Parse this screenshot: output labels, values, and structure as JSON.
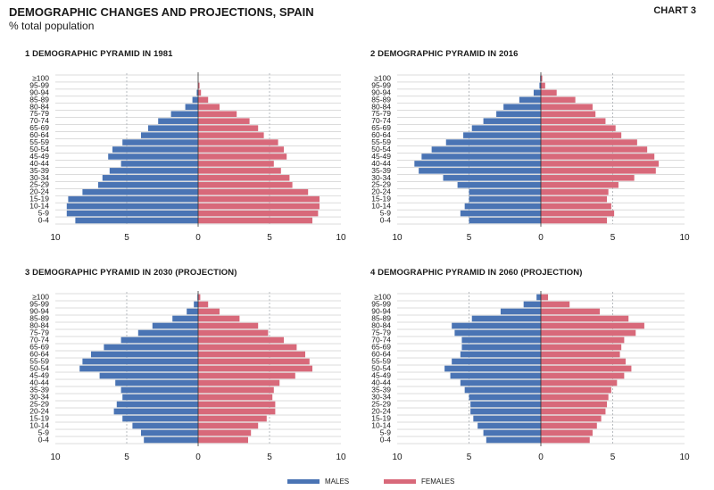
{
  "header": {
    "title": "DEMOGRAPHIC CHANGES AND PROJECTIONS, SPAIN",
    "subtitle": "% total population",
    "chart_label": "CHART 3"
  },
  "colors": {
    "males": "#4a74b4",
    "females": "#d8697a"
  },
  "legend": {
    "males": "MALES",
    "females": "FEMALES"
  },
  "chart_data": [
    {
      "type": "bar",
      "title": "1  DEMOGRAPHIC PYRAMID IN 1981",
      "categories": [
        "≥100",
        "95-99",
        "90-94",
        "85-89",
        "80-84",
        "75-79",
        "70-74",
        "65-69",
        "60-64",
        "55-59",
        "50-54",
        "45-49",
        "40-44",
        "35-39",
        "30-34",
        "25-29",
        "20-24",
        "15-19",
        "10-14",
        "5-9",
        "0-4"
      ],
      "x_ticks": [
        "10",
        "5",
        "0",
        "5",
        "10"
      ],
      "xlim": [
        -10,
        10
      ],
      "series": [
        {
          "name": "MALES",
          "values": [
            0,
            0,
            0.1,
            0.4,
            0.9,
            1.9,
            2.8,
            3.5,
            4.0,
            5.3,
            6.0,
            6.3,
            5.4,
            6.2,
            6.7,
            7.0,
            8.1,
            9.1,
            9.2,
            9.2,
            8.6
          ]
        },
        {
          "name": "FEMALES",
          "values": [
            0,
            0.1,
            0.2,
            0.7,
            1.5,
            2.7,
            3.6,
            4.2,
            4.6,
            5.6,
            6.0,
            6.2,
            5.3,
            5.8,
            6.4,
            6.6,
            7.7,
            8.5,
            8.5,
            8.4,
            8.0
          ]
        }
      ]
    },
    {
      "type": "bar",
      "title": "2  DEMOGRAPHIC PYRAMID IN 2016",
      "categories": [
        "≥100",
        "95-99",
        "90-94",
        "85-89",
        "80-84",
        "75-79",
        "70-74",
        "65-69",
        "60-64",
        "55-59",
        "50-54",
        "45-49",
        "40-44",
        "35-39",
        "30-34",
        "25-29",
        "20-24",
        "15-19",
        "10-14",
        "5-9",
        "0-4"
      ],
      "x_ticks": [
        "10",
        "5",
        "0",
        "5",
        "10"
      ],
      "xlim": [
        -10,
        10
      ],
      "series": [
        {
          "name": "MALES",
          "values": [
            0.05,
            0.1,
            0.5,
            1.5,
            2.6,
            3.1,
            4.0,
            4.8,
            5.4,
            6.6,
            7.6,
            8.3,
            8.8,
            8.5,
            6.8,
            5.8,
            5.0,
            5.0,
            5.3,
            5.6,
            5.0
          ]
        },
        {
          "name": "FEMALES",
          "values": [
            0.1,
            0.3,
            1.1,
            2.4,
            3.6,
            3.8,
            4.5,
            5.2,
            5.6,
            6.7,
            7.4,
            7.9,
            8.2,
            8.0,
            6.5,
            5.4,
            4.7,
            4.6,
            4.9,
            5.1,
            4.6
          ]
        }
      ]
    },
    {
      "type": "bar",
      "title": "3  DEMOGRAPHIC PYRAMID IN 2030 (PROJECTION)",
      "categories": [
        "≥100",
        "95-99",
        "90-94",
        "85-89",
        "80-84",
        "75-79",
        "70-74",
        "65-69",
        "60-64",
        "55-59",
        "50-54",
        "45-49",
        "40-44",
        "35-39",
        "30-34",
        "25-29",
        "20-24",
        "15-19",
        "10-14",
        "5-9",
        "0-4"
      ],
      "x_ticks": [
        "10",
        "5",
        "0",
        "5",
        "10"
      ],
      "xlim": [
        -10,
        10
      ],
      "series": [
        {
          "name": "MALES",
          "values": [
            0.05,
            0.3,
            0.8,
            1.8,
            3.2,
            4.2,
            5.4,
            6.6,
            7.5,
            8.1,
            8.3,
            6.9,
            5.8,
            5.4,
            5.3,
            5.7,
            5.9,
            5.3,
            4.6,
            4.0,
            3.8
          ]
        },
        {
          "name": "FEMALES",
          "values": [
            0.15,
            0.7,
            1.5,
            2.9,
            4.2,
            4.9,
            6.0,
            6.9,
            7.5,
            7.8,
            8.0,
            6.8,
            5.7,
            5.3,
            5.2,
            5.4,
            5.4,
            4.8,
            4.2,
            3.7,
            3.5
          ]
        }
      ]
    },
    {
      "type": "bar",
      "title": "4  DEMOGRAPHIC PYRAMID IN 2060 (PROJECTION)",
      "categories": [
        "≥100",
        "95-99",
        "90-94",
        "85-89",
        "80-84",
        "75-79",
        "70-74",
        "65-69",
        "60-64",
        "55-59",
        "50-54",
        "45-49",
        "40-44",
        "35-39",
        "30-34",
        "25-29",
        "20-24",
        "15-19",
        "10-14",
        "5-9",
        "0-4"
      ],
      "x_ticks": [
        "10",
        "5",
        "0",
        "5",
        "10"
      ],
      "xlim": [
        -10,
        10
      ],
      "series": [
        {
          "name": "MALES",
          "values": [
            0.3,
            1.2,
            2.8,
            4.8,
            6.2,
            6.0,
            5.5,
            5.5,
            5.6,
            6.2,
            6.7,
            6.3,
            5.6,
            5.3,
            5.0,
            4.9,
            4.9,
            4.7,
            4.4,
            4.0,
            3.8
          ]
        },
        {
          "name": "FEMALES",
          "values": [
            0.5,
            2.0,
            4.1,
            6.1,
            7.2,
            6.6,
            5.8,
            5.6,
            5.5,
            5.9,
            6.3,
            5.8,
            5.3,
            4.9,
            4.7,
            4.6,
            4.5,
            4.2,
            3.9,
            3.6,
            3.4
          ]
        }
      ]
    }
  ]
}
